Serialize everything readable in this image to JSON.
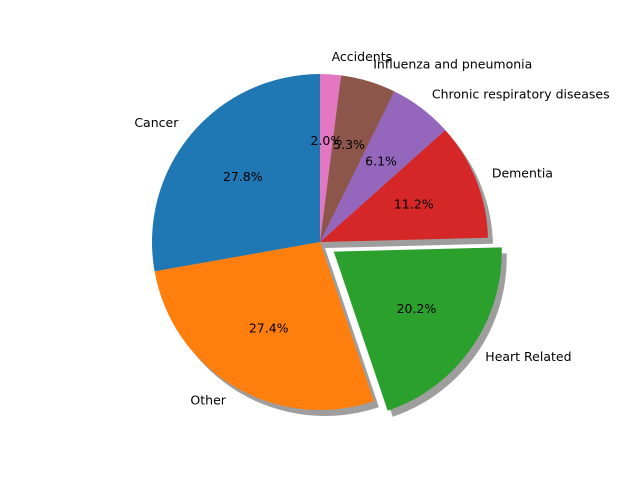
{
  "chart_data": {
    "type": "pie",
    "title": "",
    "start_angle_deg": 90,
    "direction": "counterclockwise",
    "shadow": true,
    "slices": [
      {
        "label": "Cancer",
        "value": 27.8,
        "pct_label": "27.8%",
        "color": "#1f77b4",
        "explode": 0
      },
      {
        "label": "Other",
        "value": 27.4,
        "pct_label": "27.4%",
        "color": "#ff7f0e",
        "explode": 0
      },
      {
        "label": "Heart Related",
        "value": 20.2,
        "pct_label": "20.2%",
        "color": "#2ca02c",
        "explode": 0.1
      },
      {
        "label": "Dementia",
        "value": 11.2,
        "pct_label": "11.2%",
        "color": "#d62728",
        "explode": 0
      },
      {
        "label": "Chronic respiratory diseases",
        "value": 6.1,
        "pct_label": "6.1%",
        "color": "#9467bd",
        "explode": 0
      },
      {
        "label": "Influenza and pneumonia",
        "value": 5.3,
        "pct_label": "5.3%",
        "color": "#8c564b",
        "explode": 0
      },
      {
        "label": "Accidents",
        "value": 2.0,
        "pct_label": "2.0%",
        "color": "#e377c2",
        "explode": 0
      }
    ]
  }
}
